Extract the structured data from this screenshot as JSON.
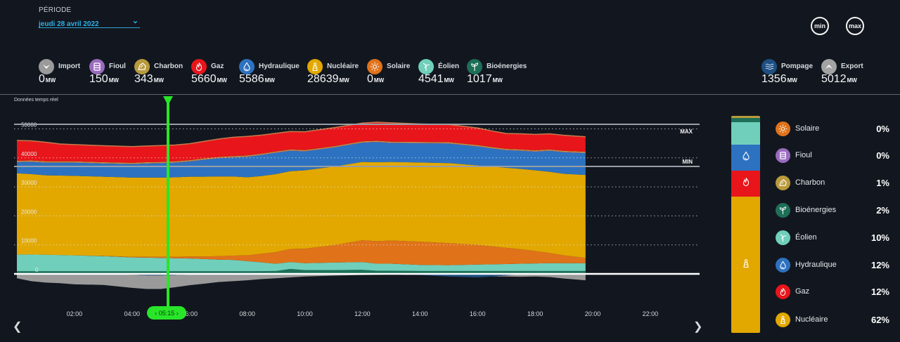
{
  "period": {
    "label": "PÉRIODE",
    "value": "jeudi 28 avril 2022"
  },
  "buttons": {
    "min": "min",
    "max": "max"
  },
  "unit": "MW",
  "sources": [
    {
      "key": "import",
      "name": "Import",
      "value": "0",
      "color": "#9a9a9a",
      "icon": "chevron-down-icon"
    },
    {
      "key": "fioul",
      "name": "Fioul",
      "value": "150",
      "color": "#9b6bbf",
      "icon": "oil-barrel-icon"
    },
    {
      "key": "charbon",
      "name": "Charbon",
      "value": "343",
      "color": "#b99a3c",
      "icon": "coal-icon"
    },
    {
      "key": "gaz",
      "name": "Gaz",
      "value": "5660",
      "color": "#e8151b",
      "icon": "flame-icon"
    },
    {
      "key": "hydraulique",
      "name": "Hydraulique",
      "value": "5586",
      "color": "#2d72c0",
      "icon": "water-drop-icon"
    },
    {
      "key": "nucleaire",
      "name": "Nucléaire",
      "value": "28639",
      "color": "#e2a800",
      "icon": "nuclear-plant-icon"
    },
    {
      "key": "solaire",
      "name": "Solaire",
      "value": "0",
      "color": "#e0721a",
      "icon": "sun-icon"
    },
    {
      "key": "eolien",
      "name": "Éolien",
      "value": "4541",
      "color": "#6fcfbb",
      "icon": "wind-turbine-icon"
    },
    {
      "key": "bioenergies",
      "name": "Bioénergies",
      "value": "1017",
      "color": "#1d6f57",
      "icon": "sprout-icon"
    }
  ],
  "exchanges": [
    {
      "key": "pompage",
      "name": "Pompage",
      "value": "1356",
      "color": "#1f4f82",
      "icon": "waves-icon"
    },
    {
      "key": "export",
      "name": "Export",
      "value": "5012",
      "color": "#a3a3a3",
      "icon": "chevron-up-icon"
    }
  ],
  "chart_note": "Données temps réel",
  "cursor_time": "05:15",
  "mix": {
    "bar_order_top_to_bottom": [
      "charbon",
      "bioenergies",
      "eolien",
      "hydraulique",
      "gaz",
      "nucleaire"
    ],
    "rows": [
      {
        "key": "solaire",
        "name": "Solaire",
        "pct": "0%",
        "color": "#e0721a",
        "icon": "sun-icon"
      },
      {
        "key": "fioul",
        "name": "Fioul",
        "pct": "0%",
        "color": "#9b6bbf",
        "icon": "oil-barrel-icon"
      },
      {
        "key": "charbon",
        "name": "Charbon",
        "pct": "1%",
        "color": "#b99a3c",
        "icon": "coal-icon"
      },
      {
        "key": "bioenergies",
        "name": "Bioénergies",
        "pct": "2%",
        "color": "#1d6f57",
        "icon": "sprout-icon"
      },
      {
        "key": "eolien",
        "name": "Éolien",
        "pct": "10%",
        "color": "#6fcfbb",
        "icon": "wind-turbine-icon"
      },
      {
        "key": "hydraulique",
        "name": "Hydraulique",
        "pct": "12%",
        "color": "#2d72c0",
        "icon": "water-drop-icon"
      },
      {
        "key": "gaz",
        "name": "Gaz",
        "pct": "12%",
        "color": "#e8151b",
        "icon": "flame-icon"
      },
      {
        "key": "nucleaire",
        "name": "Nucléaire",
        "pct": "62%",
        "color": "#e2a800",
        "icon": "nuclear-plant-icon"
      }
    ]
  },
  "chart_data": {
    "type": "area",
    "title": "Données temps réel",
    "xlabel": "",
    "ylabel": "MW",
    "x_ticks": [
      "02:00",
      "04:00",
      "06:00",
      "08:00",
      "10:00",
      "12:00",
      "14:00",
      "16:00",
      "18:00",
      "20:00",
      "22:00"
    ],
    "y_ticks": [
      0,
      10000,
      20000,
      30000,
      40000,
      50000
    ],
    "xlim_hours": [
      0,
      24
    ],
    "ylim": [
      -6000,
      52000
    ],
    "reference_lines": [
      {
        "label": "MAX",
        "value": 50000
      },
      {
        "label": "MIN",
        "value": 38500
      }
    ],
    "cursor": "05:15",
    "x_hours": [
      0,
      0.5,
      1,
      1.5,
      2,
      3,
      4,
      4.5,
      5,
      5.5,
      6,
      6.5,
      7,
      7.5,
      8,
      8.5,
      9,
      9.5,
      10,
      11,
      12,
      12.5,
      13,
      14,
      15,
      16,
      16.5,
      17,
      17.5,
      18,
      18.5,
      19,
      19.75
    ],
    "series": [
      {
        "name": "Bioénergies",
        "color": "#1d6f57",
        "values": [
          900,
          900,
          900,
          900,
          900,
          900,
          900,
          900,
          900,
          900,
          900,
          900,
          900,
          900,
          900,
          950,
          1000,
          1700,
          1300,
          1300,
          1400,
          1100,
          1100,
          1000,
          1000,
          1000,
          1000,
          1000,
          1000,
          1000,
          1000,
          1000,
          1000
        ]
      },
      {
        "name": "Éolien",
        "color": "#6fcfbb",
        "values": [
          5800,
          5800,
          5700,
          5600,
          5500,
          5200,
          4800,
          4700,
          4600,
          4500,
          4400,
          4200,
          4000,
          3900,
          3500,
          3000,
          2500,
          2400,
          2400,
          2600,
          2700,
          2400,
          2400,
          2100,
          2000,
          2200,
          2300,
          2400,
          2500,
          2600,
          2700,
          2700,
          2700
        ]
      },
      {
        "name": "Solaire",
        "color": "#e0721a",
        "values": [
          0,
          0,
          0,
          0,
          0,
          100,
          200,
          300,
          400,
          500,
          700,
          900,
          1200,
          1500,
          2000,
          3000,
          4000,
          4500,
          5000,
          6000,
          7500,
          7800,
          8000,
          8000,
          7600,
          6800,
          6200,
          5600,
          5000,
          4300,
          3500,
          2700,
          1800
        ]
      },
      {
        "name": "Nucléaire",
        "color": "#e2a800",
        "values": [
          28000,
          27700,
          27400,
          27400,
          27400,
          27300,
          27300,
          27300,
          27300,
          27400,
          27500,
          27500,
          27500,
          27300,
          26900,
          26800,
          26900,
          26800,
          27000,
          27100,
          27000,
          27200,
          27100,
          27300,
          27600,
          27400,
          27500,
          27600,
          27700,
          27800,
          28000,
          28100,
          28600
        ]
      },
      {
        "name": "Hydraulique",
        "color": "#2d72c0",
        "values": [
          3800,
          4200,
          4300,
          4400,
          4500,
          4500,
          4600,
          4800,
          4900,
          5000,
          5200,
          5800,
          6200,
          6500,
          7000,
          7200,
          7300,
          7000,
          6500,
          6500,
          6600,
          6900,
          6500,
          6600,
          6700,
          6500,
          6200,
          6000,
          6200,
          6400,
          7200,
          7400,
          7500
        ]
      },
      {
        "name": "Fioul",
        "color": "#9b6bbf",
        "values": [
          150,
          150,
          150,
          150,
          150,
          150,
          150,
          150,
          150,
          150,
          150,
          150,
          150,
          150,
          150,
          150,
          150,
          150,
          150,
          150,
          150,
          150,
          150,
          150,
          150,
          150,
          150,
          150,
          150,
          150,
          150,
          150,
          150
        ]
      },
      {
        "name": "Charbon",
        "color": "#b99a3c",
        "values": [
          340,
          340,
          340,
          340,
          340,
          340,
          340,
          340,
          340,
          340,
          340,
          340,
          340,
          340,
          340,
          340,
          340,
          340,
          340,
          340,
          340,
          340,
          340,
          340,
          340,
          340,
          340,
          340,
          340,
          340,
          340,
          340,
          340
        ]
      },
      {
        "name": "Gaz",
        "color": "#e8151b",
        "values": [
          7000,
          6800,
          6600,
          6000,
          5800,
          5700,
          5600,
          5600,
          5650,
          5650,
          5700,
          5900,
          6200,
          6500,
          6600,
          6400,
          6300,
          6200,
          6300,
          6400,
          6300,
          6400,
          6500,
          6200,
          6100,
          5900,
          5600,
          5300,
          5400,
          5500,
          5400,
          5400,
          5200
        ]
      },
      {
        "name": "Export",
        "color": "#9a9a9a",
        "values": [
          -1500,
          -2500,
          -3000,
          -3200,
          -3600,
          -3800,
          -4800,
          -5200,
          -5200,
          -4600,
          -3900,
          -3400,
          -2800,
          -2500,
          -2200,
          -1800,
          -1500,
          -1200,
          -900,
          -600,
          -400,
          -300,
          -200,
          -100,
          -300,
          -500,
          -700,
          -900,
          -1000,
          -900,
          -1100,
          -1600,
          -2200
        ]
      },
      {
        "name": "Pompage",
        "color": "#1f4f82",
        "values": [
          0,
          0,
          0,
          0,
          0,
          0,
          -300,
          -500,
          -500,
          -400,
          -200,
          0,
          0,
          0,
          0,
          0,
          0,
          0,
          0,
          0,
          0,
          0,
          0,
          -400,
          -900,
          -1200,
          -900,
          -500,
          0,
          0,
          0,
          0,
          0
        ]
      }
    ]
  }
}
